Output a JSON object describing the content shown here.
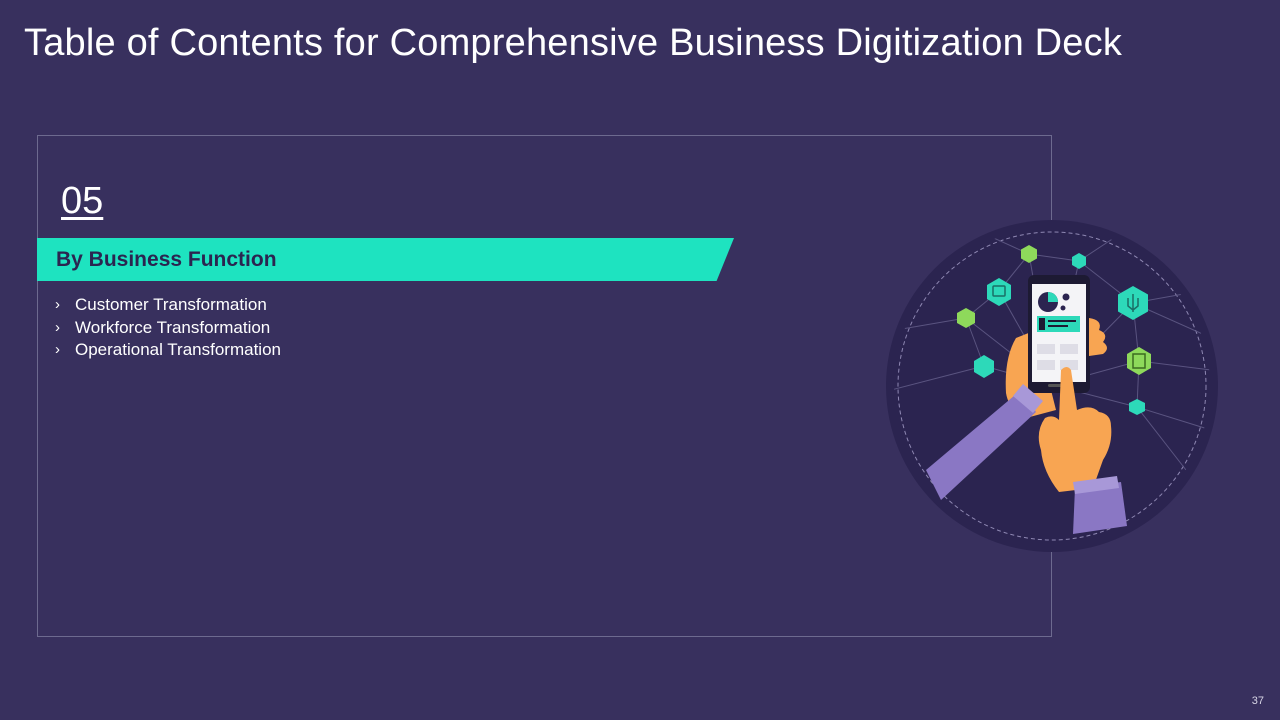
{
  "slide": {
    "title": "Table of Contents for Comprehensive Business Digitization Deck",
    "section_number": "05",
    "section_title": "By Business Function",
    "items": [
      "Customer Transformation",
      "Workforce Transformation",
      "Operational Transformation"
    ],
    "bullet_glyph": "›",
    "page_number": "37"
  },
  "colors": {
    "background": "#38305e",
    "accent": "#1ee3c0",
    "circle": "#2b2450",
    "hand": "#f8a552",
    "sleeve": "#8a77c4",
    "icon_teal": "#2dd9b9",
    "icon_green": "#8ed95b"
  },
  "illustration": {
    "icons": [
      "gear-circuit-icon",
      "network-icon",
      "calendar-icon",
      "circuit-icon",
      "chip-icon",
      "robot-icon",
      "people-icon",
      "bus-icon",
      "pie-chart-icon"
    ]
  }
}
